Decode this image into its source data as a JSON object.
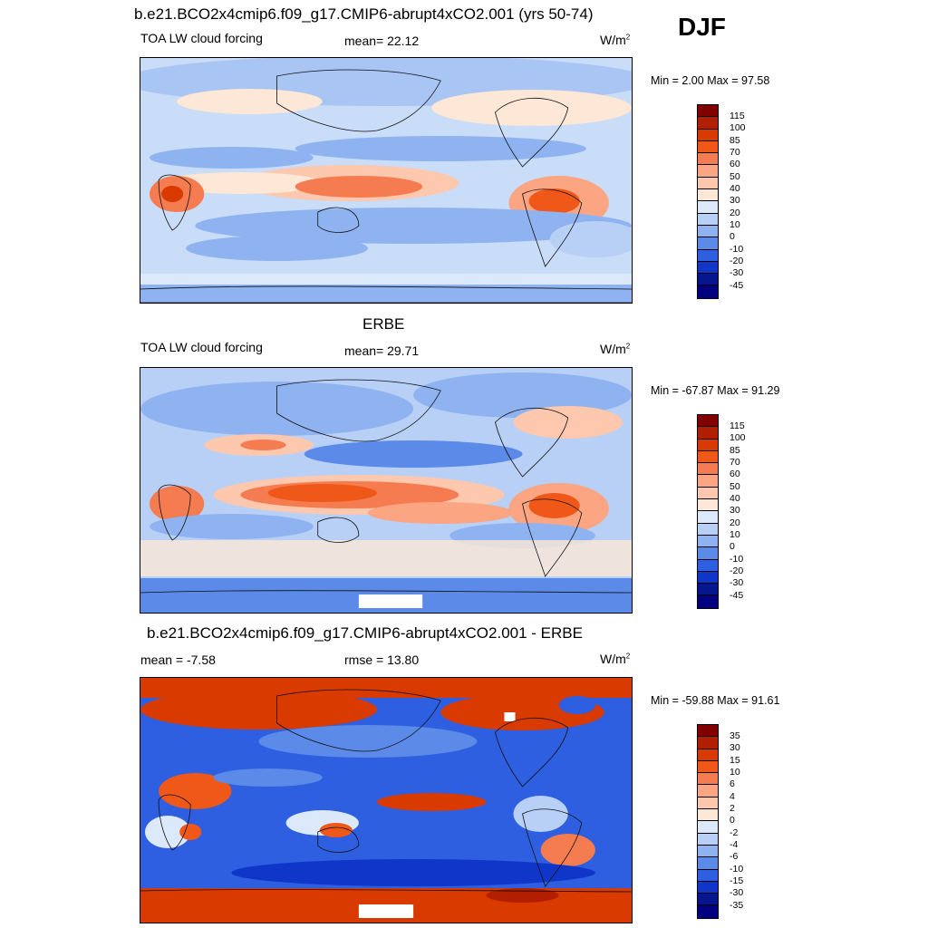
{
  "season": "DJF",
  "panels": [
    {
      "title": "b.e21.BCO2x4cmip6.f09_g17.CMIP6-abrupt4xCO2.001 (yrs 50-74)",
      "left_label": "TOA LW cloud forcing",
      "center_label": "mean=  22.12",
      "units": "W/m",
      "units_sup": "2",
      "minmax": "Min =   2.00 Max =  97.58",
      "levels": [
        "115",
        "100",
        "85",
        "70",
        "60",
        "50",
        "40",
        "30",
        "20",
        "10",
        "0",
        "-10",
        "-20",
        "-30",
        "-45"
      ]
    },
    {
      "title": "ERBE",
      "left_label": "TOA LW cloud forcing",
      "center_label": "mean=  29.71",
      "units": "W/m",
      "units_sup": "2",
      "minmax": "Min = -67.87 Max =  91.29",
      "levels": [
        "115",
        "100",
        "85",
        "70",
        "60",
        "50",
        "40",
        "30",
        "20",
        "10",
        "0",
        "-10",
        "-20",
        "-30",
        "-45"
      ]
    },
    {
      "title": "b.e21.BCO2x4cmip6.f09_g17.CMIP6-abrupt4xCO2.001 - ERBE",
      "left_label": "mean =  -7.58",
      "center_label": "rmse =  13.80",
      "units": "W/m",
      "units_sup": "2",
      "minmax": "Min = -59.88 Max =  91.61",
      "levels": [
        "35",
        "30",
        "15",
        "10",
        "6",
        "4",
        "2",
        "0",
        "-2",
        "-4",
        "-6",
        "-10",
        "-15",
        "-30",
        "-35"
      ]
    }
  ],
  "colors": {
    "palette_top_to_bottom": [
      "#800000",
      "#b21e00",
      "#d83a00",
      "#f0581a",
      "#f57c50",
      "#fba582",
      "#fdc8ad",
      "#fde7d7",
      "#dce9fb",
      "#b8d0f6",
      "#8fb2f0",
      "#5b8ae8",
      "#2d5fe0",
      "#0f36c8",
      "#05168f",
      "#000080"
    ],
    "coast": "#111111"
  }
}
